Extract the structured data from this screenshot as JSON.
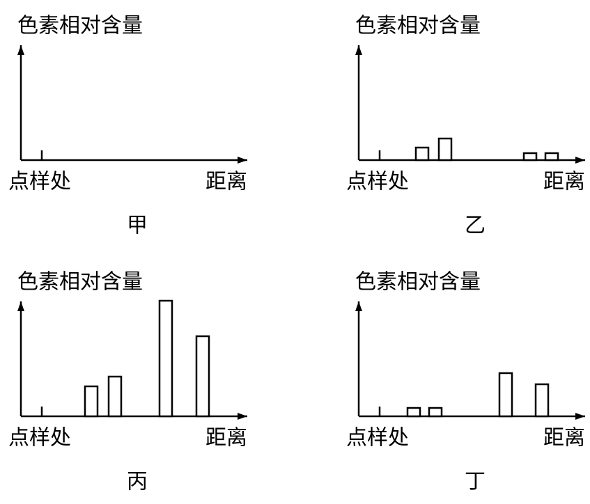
{
  "chart_data": [
    {
      "type": "bar",
      "y_label": "色素相对含量",
      "origin_label": "点样处",
      "x_label": "距离",
      "caption": "甲",
      "x": [],
      "values": [],
      "xlim": [
        -30,
        300
      ],
      "ylim": [
        0,
        170
      ]
    },
    {
      "type": "bar",
      "y_label": "色素相对含量",
      "origin_label": "点样处",
      "x_label": "距离",
      "caption": "乙",
      "x": [
        61,
        94,
        216,
        247
      ],
      "values": [
        18,
        31,
        10,
        10
      ],
      "xlim": [
        -30,
        300
      ],
      "ylim": [
        0,
        170
      ]
    },
    {
      "type": "bar",
      "y_label": "色素相对含量",
      "origin_label": "点样处",
      "x_label": "距离",
      "caption": "丙",
      "x": [
        71,
        105,
        178,
        231
      ],
      "values": [
        43,
        57,
        166,
        115
      ],
      "xlim": [
        -30,
        300
      ],
      "ylim": [
        0,
        170
      ]
    },
    {
      "type": "bar",
      "y_label": "色素相对含量",
      "origin_label": "点样处",
      "x_label": "距离",
      "caption": "丁",
      "x": [
        49,
        80,
        181,
        233
      ],
      "values": [
        12,
        12,
        62,
        46
      ],
      "xlim": [
        -30,
        300
      ],
      "ylim": [
        0,
        170
      ]
    }
  ]
}
